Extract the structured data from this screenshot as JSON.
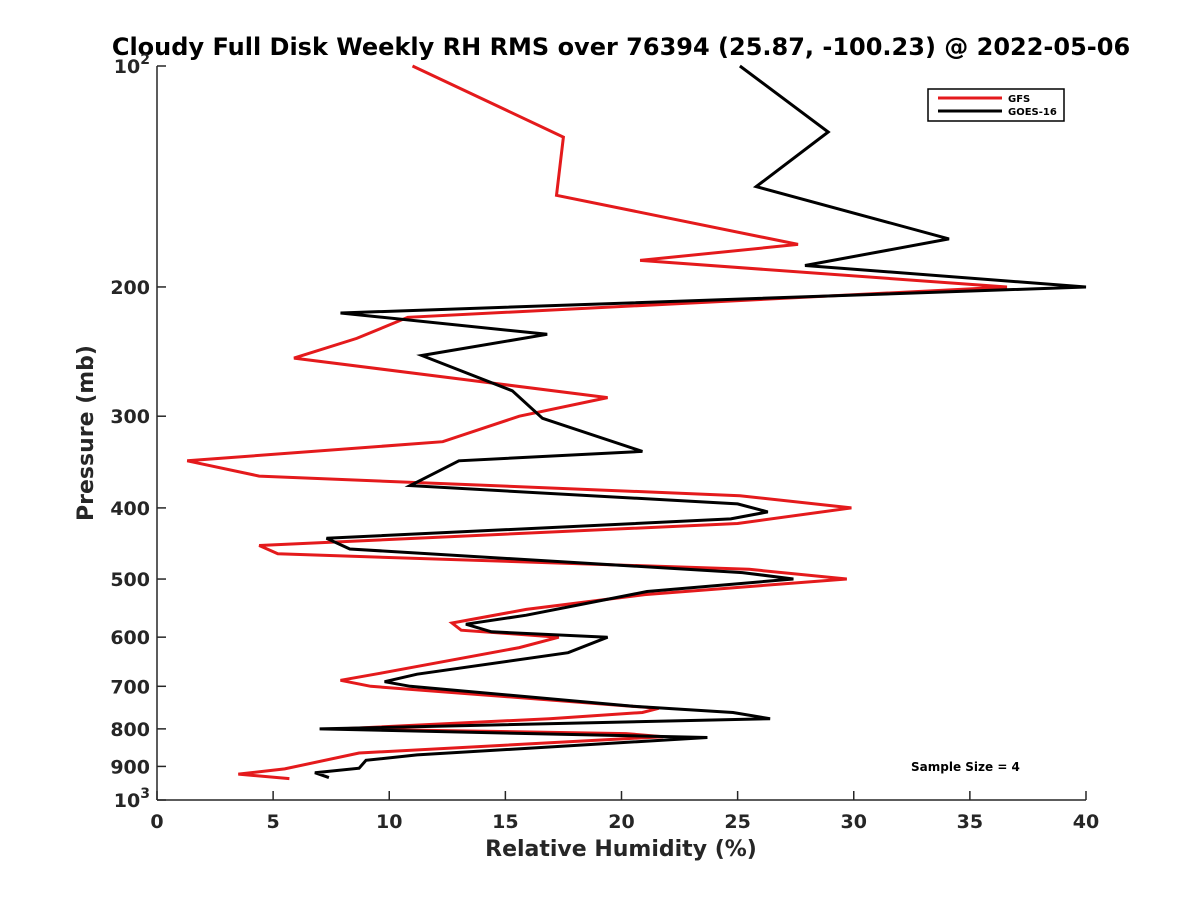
{
  "chart_data": {
    "type": "line",
    "title": "Cloudy Full Disk Weekly RH RMS over 76394 (25.87, -100.23) @ 2022-05-06",
    "xlabel": "Relative Humidity (%)",
    "ylabel": "Pressure (mb)",
    "xlim": [
      0,
      40
    ],
    "ylim": [
      100,
      1000
    ],
    "yscale": "log",
    "y_reversed": true,
    "grid": false,
    "legend_position": "top-right",
    "x_ticks": [
      0,
      5,
      10,
      15,
      20,
      25,
      30,
      35,
      40
    ],
    "x_tick_labels": [
      "0",
      "5",
      "10",
      "15",
      "20",
      "25",
      "30",
      "35",
      "40"
    ],
    "y_ticks": [
      100,
      200,
      300,
      400,
      500,
      600,
      700,
      800,
      900,
      1000
    ],
    "y_tick_labels": [
      {
        "base": "10",
        "exp": "2"
      },
      {
        "base": "200",
        "exp": ""
      },
      {
        "base": "300",
        "exp": ""
      },
      {
        "base": "400",
        "exp": ""
      },
      {
        "base": "500",
        "exp": ""
      },
      {
        "base": "600",
        "exp": ""
      },
      {
        "base": "700",
        "exp": ""
      },
      {
        "base": "800",
        "exp": ""
      },
      {
        "base": "900",
        "exp": ""
      },
      {
        "base": "10",
        "exp": "3"
      }
    ],
    "annotation": "Sample Size = 4",
    "series": [
      {
        "name": "GFS",
        "color": "#e41a1c",
        "points": [
          [
            11.0,
            100
          ],
          [
            17.5,
            125
          ],
          [
            17.2,
            150
          ],
          [
            27.6,
            175
          ],
          [
            20.8,
            184
          ],
          [
            36.6,
            200
          ],
          [
            10.8,
            220
          ],
          [
            8.6,
            235
          ],
          [
            5.9,
            250
          ],
          [
            19.4,
            283
          ],
          [
            15.6,
            300
          ],
          [
            12.3,
            325
          ],
          [
            1.3,
            345
          ],
          [
            4.4,
            362
          ],
          [
            25.1,
            385
          ],
          [
            29.9,
            400
          ],
          [
            25.0,
            420
          ],
          [
            4.4,
            450
          ],
          [
            5.2,
            462
          ],
          [
            25.5,
            485
          ],
          [
            29.7,
            500
          ],
          [
            21.0,
            525
          ],
          [
            15.9,
            550
          ],
          [
            12.7,
            574
          ],
          [
            13.1,
            587
          ],
          [
            17.3,
            600
          ],
          [
            15.6,
            620
          ],
          [
            9.6,
            672
          ],
          [
            7.9,
            687
          ],
          [
            9.2,
            700
          ],
          [
            21.6,
            750
          ],
          [
            20.9,
            760
          ],
          [
            16.9,
            775
          ],
          [
            7.9,
            800
          ],
          [
            20.2,
            812
          ],
          [
            21.8,
            820
          ],
          [
            8.7,
            863
          ],
          [
            5.5,
            907
          ],
          [
            3.5,
            922
          ],
          [
            5.7,
            935
          ]
        ]
      },
      {
        "name": "GOES-16",
        "color": "#000000",
        "points": [
          [
            25.1,
            100
          ],
          [
            28.9,
            123
          ],
          [
            25.8,
            146
          ],
          [
            34.1,
            172
          ],
          [
            27.9,
            187
          ],
          [
            40.0,
            200
          ],
          [
            7.9,
            217
          ],
          [
            16.8,
            232
          ],
          [
            11.4,
            248
          ],
          [
            15.3,
            277
          ],
          [
            16.6,
            302
          ],
          [
            20.9,
            335
          ],
          [
            13.0,
            345
          ],
          [
            10.9,
            373
          ],
          [
            25.0,
            395
          ],
          [
            26.3,
            405
          ],
          [
            24.7,
            414
          ],
          [
            7.3,
            440
          ],
          [
            8.3,
            455
          ],
          [
            25.2,
            490
          ],
          [
            27.4,
            500
          ],
          [
            21.1,
            520
          ],
          [
            15.9,
            560
          ],
          [
            13.3,
            576
          ],
          [
            14.4,
            590
          ],
          [
            19.4,
            600
          ],
          [
            17.7,
            630
          ],
          [
            11.2,
            674
          ],
          [
            9.8,
            690
          ],
          [
            10.9,
            700
          ],
          [
            20.5,
            745
          ],
          [
            24.8,
            760
          ],
          [
            26.4,
            775
          ],
          [
            7.0,
            800
          ],
          [
            23.7,
            822
          ],
          [
            11.2,
            868
          ],
          [
            9.0,
            883
          ],
          [
            8.7,
            905
          ],
          [
            6.8,
            918
          ],
          [
            7.4,
            932
          ]
        ]
      }
    ]
  }
}
